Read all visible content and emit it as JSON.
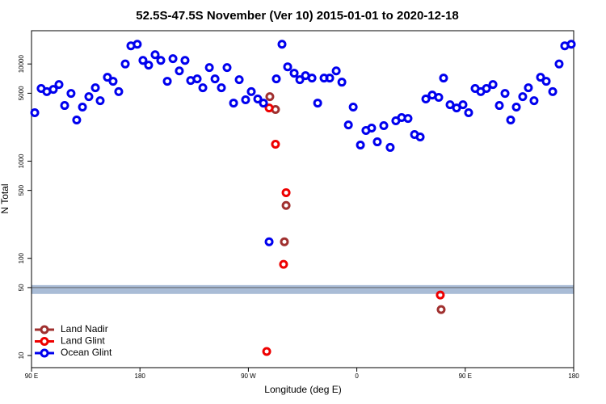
{
  "chart_data": {
    "type": "scatter",
    "title": "52.5S-47.5S November (Ver 10)   2015-01-01 to 2020-12-18",
    "x_label": "Longitude (deg E)",
    "y_label": "N Total",
    "log_y": true,
    "legend": "bottom-left",
    "xlim": [
      90,
      540
    ],
    "ylim": [
      7.5,
      22000
    ],
    "xticks": [
      {
        "value": 90,
        "label": "90 E"
      },
      180,
      {
        "value": 270,
        "label": "90 W"
      },
      {
        "value": 360,
        "label": "0"
      },
      {
        "value": 450,
        "label": "90 E"
      },
      {
        "value": 540,
        "label": "180"
      }
    ],
    "yticks": [
      10,
      50,
      100,
      500,
      1000,
      5000,
      10000
    ],
    "band": [
      43,
      53
    ],
    "band_color": "#a9bcd6",
    "series": [
      {
        "name": "Land Nadir",
        "color": "#a0302f",
        "x": [
          287.8,
          292.5,
          301.3,
          299.9,
          430.0
        ],
        "values": [
          4610,
          3400,
          350,
          148,
          29.7
        ]
      },
      {
        "name": "Land Glint",
        "color": "#ee0000",
        "x": [
          287.2,
          292.5,
          301.3,
          299.2,
          429.3,
          285.2
        ],
        "values": [
          3530,
          1494,
          474,
          86.7,
          41.9,
          11
        ]
      },
      {
        "name": "Ocean Glint",
        "color": "#0000ee",
        "x": [
          92.7,
          98,
          102.7,
          108.1,
          112.8,
          117.5,
          122.8,
          127.5,
          132.3,
          137.6,
          143,
          147,
          153,
          157.7,
          162.4,
          167.8,
          172.5,
          177.8,
          182.5,
          187.2,
          192.6,
          197.3,
          202.7,
          207.4,
          212.7,
          217.4,
          222.1,
          227.5,
          232.2,
          237.6,
          242.3,
          247.6,
          252.3,
          257.7,
          262.4,
          267.7,
          272.4,
          277.8,
          282.5,
          287.2,
          293.2,
          297.9,
          302.6,
          308,
          312.7,
          317.4,
          322.8,
          327.5,
          332.8,
          337.5,
          342.9,
          347.6,
          353,
          357,
          363,
          367.6,
          372.3,
          377,
          382.4,
          387.7,
          392.4,
          397.2,
          402.5,
          407.9,
          412.6,
          417.3,
          422.6,
          428,
          432,
          437.4,
          442.8,
          448.1,
          452.8,
          458.2,
          462.9,
          467.6,
          473,
          478.3,
          483,
          487.7,
          492.4,
          497.7,
          502.4,
          507.1,
          512.5,
          517.2,
          522.6,
          527.9,
          532.6,
          538
        ],
        "values": [
          3150,
          5600,
          5200,
          5480,
          6140,
          3740,
          4980,
          2650,
          3600,
          4610,
          5690,
          4190,
          7300,
          6640,
          5200,
          10000,
          15380,
          15960,
          10890,
          9720,
          12450,
          10890,
          6640,
          11330,
          8490,
          10890,
          6760,
          7020,
          5690,
          9180,
          7020,
          5690,
          9180,
          3960,
          6890,
          4280,
          5200,
          4360,
          3960,
          148,
          7020,
          15960,
          9350,
          8040,
          6890,
          7590,
          7160,
          3960,
          7160,
          7160,
          8490,
          6500,
          2360,
          3600,
          1466,
          2070,
          2190,
          1580,
          2320,
          1385,
          2600,
          2810,
          2750,
          1880,
          1775,
          4360,
          4790,
          4530,
          7160,
          3810,
          3530,
          3810,
          3150,
          5600,
          5200,
          5600,
          6140,
          3740,
          4980,
          2650,
          3600,
          4610,
          5690,
          4190,
          7300,
          6640,
          5200,
          10000,
          15380,
          15960
        ]
      }
    ]
  }
}
